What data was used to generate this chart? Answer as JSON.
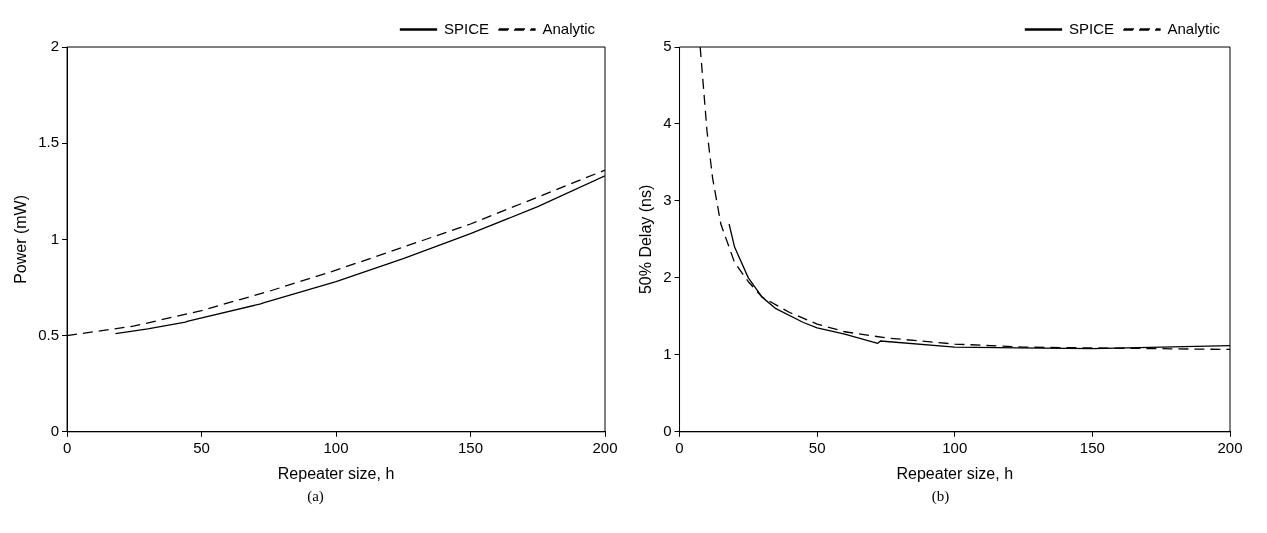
{
  "chart_data": [
    {
      "type": "line",
      "xlabel": "Repeater size, h",
      "ylabel": "Power (mW)",
      "xlim": [
        0,
        200
      ],
      "xticks": [
        0,
        50,
        100,
        150,
        200
      ],
      "ylim": [
        0,
        2
      ],
      "yticks": [
        0,
        0.5,
        1,
        1.5,
        2
      ],
      "grid": false,
      "legend": "top right",
      "marker": "none",
      "annotations": [
        "(a)"
      ],
      "series": [
        {
          "name": "SPICE",
          "color": "#000000",
          "line_style": "solid",
          "x": [
            18,
            25,
            30,
            44,
            45,
            72,
            73,
            100,
            125,
            150,
            175,
            200
          ],
          "values": [
            0.51,
            0.525,
            0.535,
            0.57,
            0.575,
            0.665,
            0.67,
            0.78,
            0.9,
            1.03,
            1.17,
            1.33
          ]
        },
        {
          "name": "Analytic",
          "color": "#000000",
          "line_style": "dashed",
          "x": [
            0,
            25,
            50,
            75,
            100,
            125,
            150,
            175,
            200
          ],
          "values": [
            0.5,
            0.55,
            0.63,
            0.73,
            0.84,
            0.96,
            1.08,
            1.22,
            1.36
          ]
        }
      ]
    },
    {
      "type": "line",
      "xlabel": "Repeater size, h",
      "ylabel": "50% Delay (ns)",
      "xlim": [
        0,
        200
      ],
      "xticks": [
        0,
        50,
        100,
        150,
        200
      ],
      "ylim": [
        0,
        5
      ],
      "yticks": [
        0,
        1,
        2,
        3,
        4,
        5
      ],
      "grid": false,
      "legend": "top right",
      "marker": "none",
      "annotations": [
        "(b)"
      ],
      "series": [
        {
          "name": "SPICE",
          "color": "#000000",
          "line_style": "solid",
          "x": [
            18,
            20,
            25,
            30,
            35,
            45,
            50,
            60,
            72,
            73,
            100,
            150,
            200
          ],
          "values": [
            2.7,
            2.4,
            2.0,
            1.75,
            1.6,
            1.42,
            1.35,
            1.27,
            1.15,
            1.18,
            1.1,
            1.08,
            1.12
          ]
        },
        {
          "name": "Analytic",
          "color": "#000000",
          "line_style": "dashed",
          "x": [
            7.5,
            10,
            12,
            15,
            20,
            25,
            30,
            40,
            50,
            60,
            75,
            100,
            125,
            150,
            175,
            200
          ],
          "values": [
            5,
            3.9,
            3.3,
            2.7,
            2.2,
            1.95,
            1.75,
            1.55,
            1.4,
            1.3,
            1.22,
            1.14,
            1.1,
            1.09,
            1.08,
            1.07
          ]
        }
      ]
    }
  ]
}
